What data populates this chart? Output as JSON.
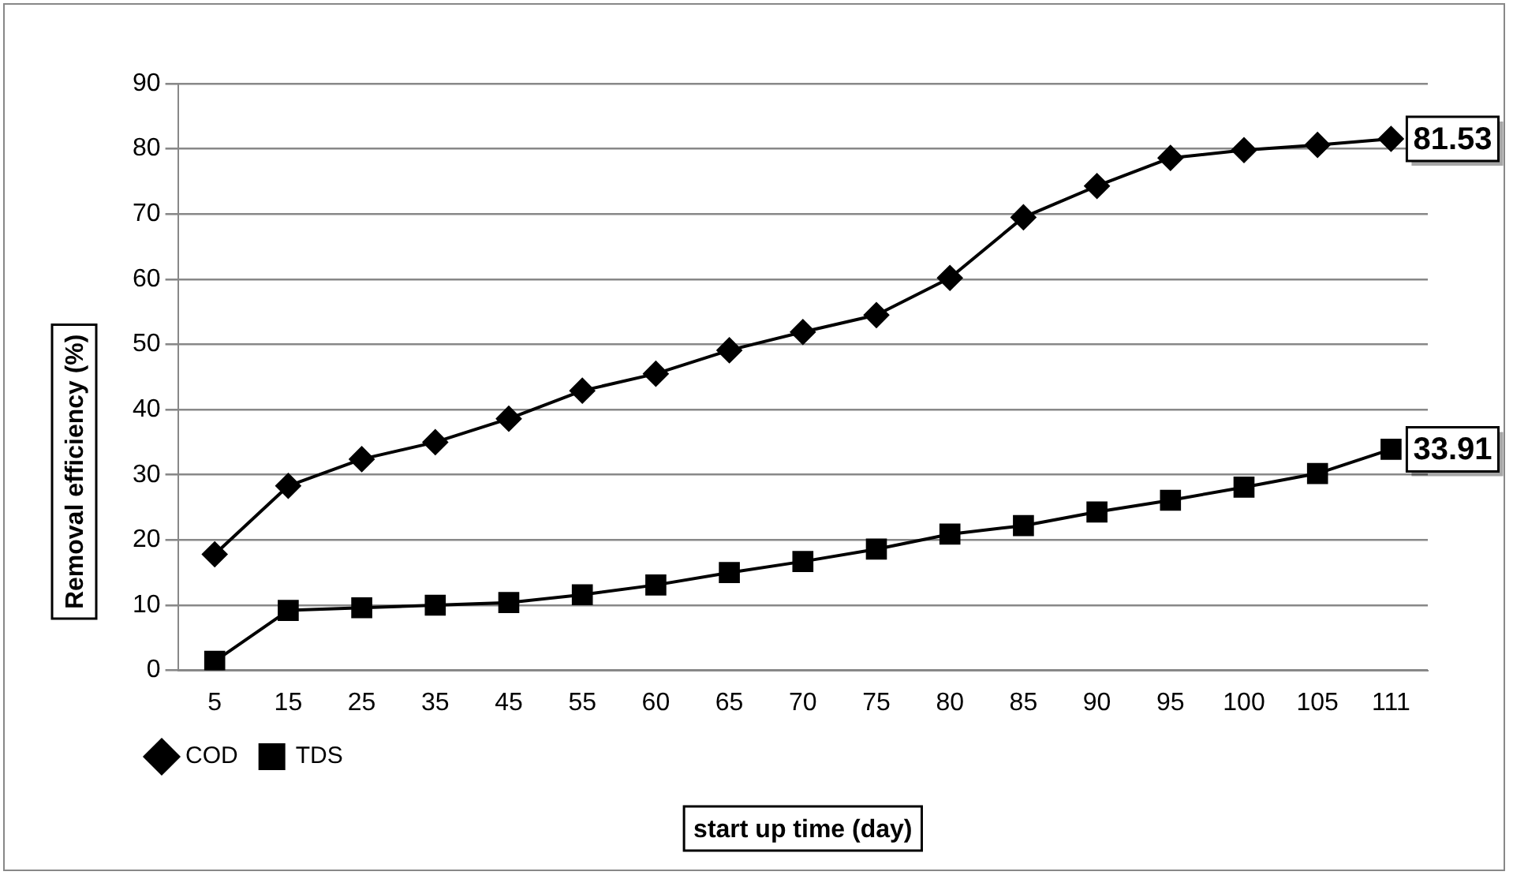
{
  "chart_data": {
    "type": "line",
    "xlabel": "start up time (day)",
    "ylabel": "Removal efficiency (%)",
    "categories": [
      "5",
      "15",
      "25",
      "35",
      "45",
      "55",
      "60",
      "65",
      "70",
      "75",
      "80",
      "85",
      "90",
      "95",
      "100",
      "105",
      "111"
    ],
    "series": [
      {
        "name": "COD",
        "color": "#000000",
        "marker": "diamond",
        "values": [
          17.8,
          28.3,
          32.4,
          35.0,
          38.6,
          42.9,
          45.5,
          49.1,
          51.9,
          54.5,
          60.2,
          69.5,
          74.3,
          78.6,
          79.8,
          80.6,
          81.53
        ],
        "value_labels": [
          null,
          null,
          null,
          null,
          null,
          null,
          null,
          null,
          null,
          null,
          null,
          null,
          null,
          null,
          null,
          null,
          "81.53"
        ]
      },
      {
        "name": "TDS",
        "color": "#000000",
        "marker": "square",
        "values": [
          1.4,
          9.2,
          9.6,
          10.0,
          10.4,
          11.6,
          13.1,
          15.0,
          16.7,
          18.6,
          20.9,
          22.2,
          24.3,
          26.1,
          28.1,
          30.2,
          33.91
        ],
        "value_labels": [
          null,
          null,
          null,
          null,
          null,
          null,
          null,
          null,
          null,
          null,
          null,
          null,
          null,
          null,
          null,
          null,
          "33.91"
        ]
      }
    ],
    "ylim": [
      0,
      90
    ],
    "yticks": [
      0,
      10,
      20,
      30,
      40,
      50,
      60,
      70,
      80,
      90
    ],
    "grid": "y",
    "legend": "bottom left",
    "line_style": "solid"
  }
}
